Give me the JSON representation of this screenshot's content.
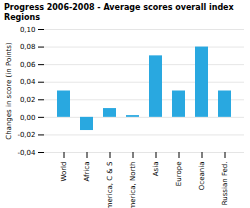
{
  "chart_data": {
    "type": "bar",
    "title": "Progress 2006-2008 - Average scores overall index Regions",
    "ylabel": "Changes in score (in Points)",
    "categories": [
      "World",
      "Africa",
      "America, C & S",
      "America, North",
      "Asia",
      "Europe",
      "Oceania",
      "Russian Fed."
    ],
    "values": [
      0.03,
      -0.015,
      0.01,
      0.002,
      0.07,
      0.03,
      0.08,
      0.03
    ],
    "color": "#29a8e0",
    "ylim": [
      -0.04,
      0.1
    ],
    "yticks": [
      {
        "value": -0.04,
        "label": "-0,04"
      },
      {
        "value": -0.02,
        "label": "-0,02"
      },
      {
        "value": 0.0,
        "label": "0,00"
      },
      {
        "value": 0.02,
        "label": "0,02"
      },
      {
        "value": 0.04,
        "label": "0,04"
      },
      {
        "value": 0.06,
        "label": "0,06"
      },
      {
        "value": 0.08,
        "label": "0,08"
      },
      {
        "value": 0.1,
        "label": "0,10"
      }
    ],
    "grid": true
  }
}
